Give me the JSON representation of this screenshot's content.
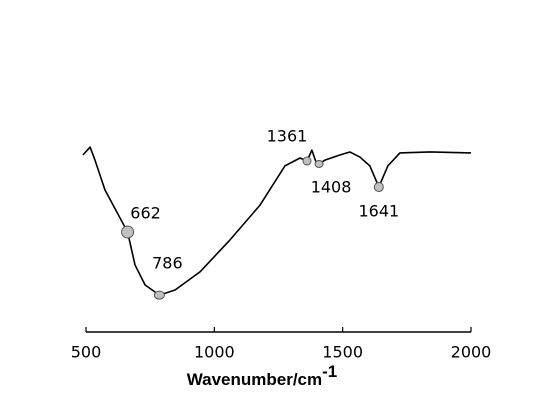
{
  "chart_data": {
    "type": "line",
    "xlabel": "Wavenumber/cm",
    "xlabel_sup": "-1",
    "xlim": [
      500,
      2000
    ],
    "xticks": [
      500,
      1000,
      1500,
      2000
    ],
    "ylim": [
      0,
      100
    ],
    "color": "#000000",
    "x": [
      488,
      516,
      535,
      574,
      662,
      691,
      730,
      786,
      847,
      944,
      1061,
      1178,
      1275,
      1334,
      1361,
      1380,
      1396,
      1408,
      1431,
      1489,
      1528,
      1567,
      1606,
      1641,
      1676,
      1723,
      1840,
      2000
    ],
    "values": [
      76.3,
      79.7,
      74.1,
      61.2,
      43.1,
      28.9,
      20.3,
      15.9,
      18.1,
      25.9,
      39.7,
      54.7,
      71.6,
      75.0,
      73.7,
      78.4,
      73.3,
      72.4,
      74.1,
      76.3,
      77.6,
      75.4,
      71.6,
      62.5,
      71.6,
      77.2,
      77.6,
      77.2
    ],
    "annotations": [
      {
        "x": 662,
        "y": 43.1,
        "label": "662"
      },
      {
        "x": 786,
        "y": 15.9,
        "label": "786"
      },
      {
        "x": 1361,
        "y": 73.7,
        "label": "1361"
      },
      {
        "x": 1408,
        "y": 72.4,
        "label": "1408"
      },
      {
        "x": 1641,
        "y": 62.5,
        "label": "1641"
      }
    ]
  }
}
